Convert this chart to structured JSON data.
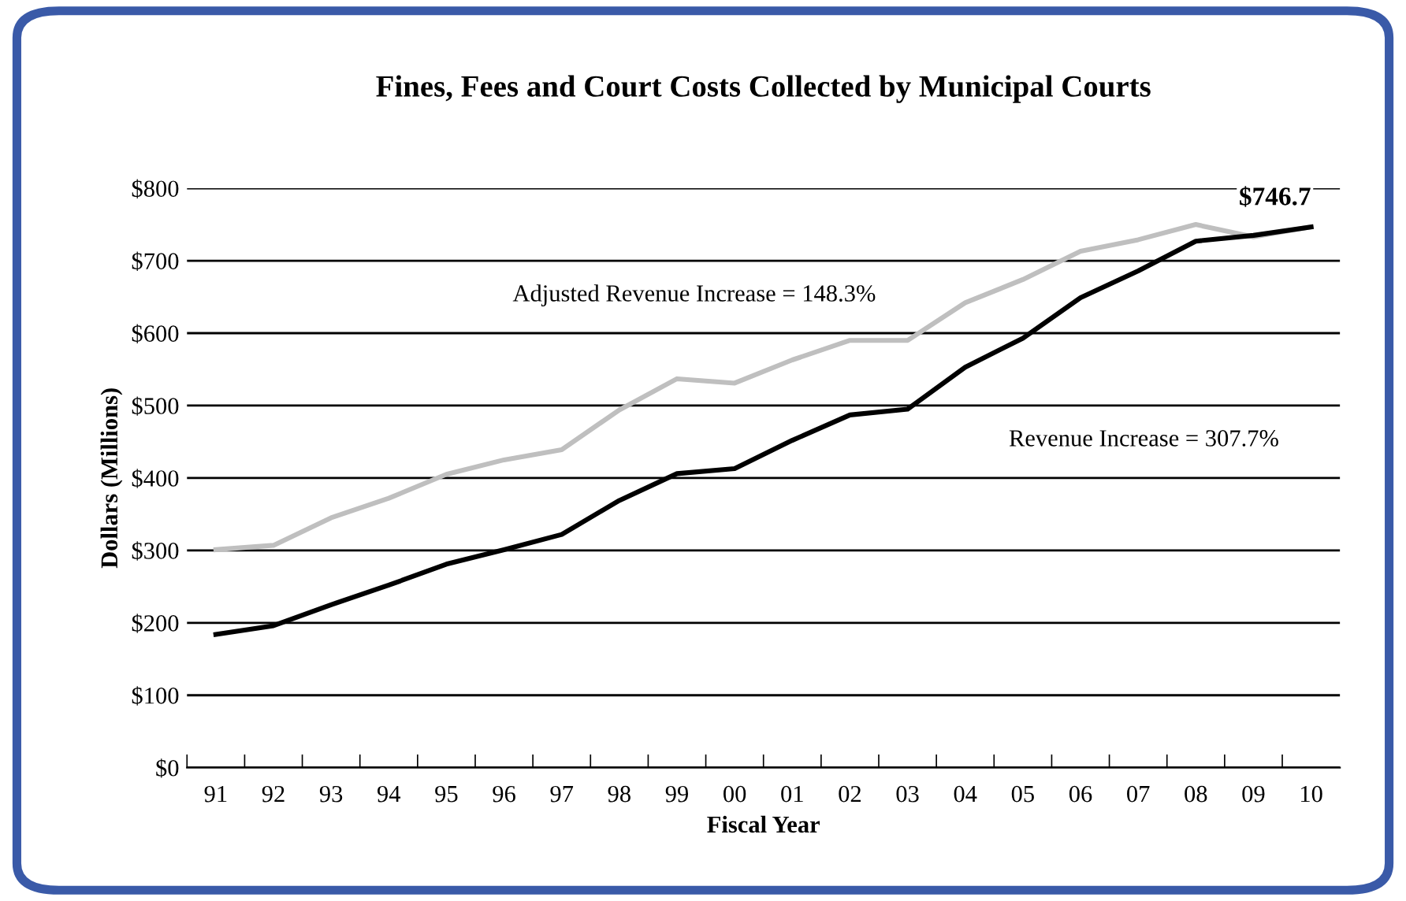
{
  "chart_data": {
    "type": "line",
    "title": "Fines, Fees and Court Costs Collected by Municipal Courts",
    "xlabel": "Fiscal Year",
    "ylabel": "Dollars (Millions)",
    "categories": [
      "91",
      "92",
      "93",
      "94",
      "95",
      "96",
      "97",
      "98",
      "99",
      "00",
      "01",
      "02",
      "03",
      "04",
      "05",
      "06",
      "07",
      "08",
      "09",
      "10"
    ],
    "series": [
      {
        "color": "#bfbfbf",
        "values": [
          301,
          307,
          345,
          372,
          405,
          425,
          439,
          494,
          537,
          531,
          563,
          590,
          590,
          642,
          674,
          713,
          729,
          750,
          733,
          746.7
        ]
      },
      {
        "color": "#000000",
        "values": [
          184,
          196,
          225,
          252,
          281,
          301,
          322,
          369,
          406,
          413,
          452,
          487,
          495,
          553,
          593,
          649,
          686,
          727,
          735,
          746.7
        ]
      }
    ],
    "ylim": [
      0,
      800
    ],
    "yticks": [
      {
        "value": 0,
        "label": "$0"
      },
      {
        "value": 100,
        "label": "$100"
      },
      {
        "value": 200,
        "label": "$200"
      },
      {
        "value": 300,
        "label": "$300"
      },
      {
        "value": 400,
        "label": "$400"
      },
      {
        "value": 500,
        "label": "$500"
      },
      {
        "value": 600,
        "label": "$600"
      },
      {
        "value": 700,
        "label": "$700"
      },
      {
        "value": 800,
        "label": "$800"
      }
    ],
    "grid": "y",
    "marker": "none",
    "line_style": "solid",
    "annotations": [
      {
        "text": "$746.7",
        "x": "10",
        "y": 746.7
      },
      "Adjusted Revenue Increase = 148.3%",
      "Revenue Increase = 307.7%"
    ]
  }
}
